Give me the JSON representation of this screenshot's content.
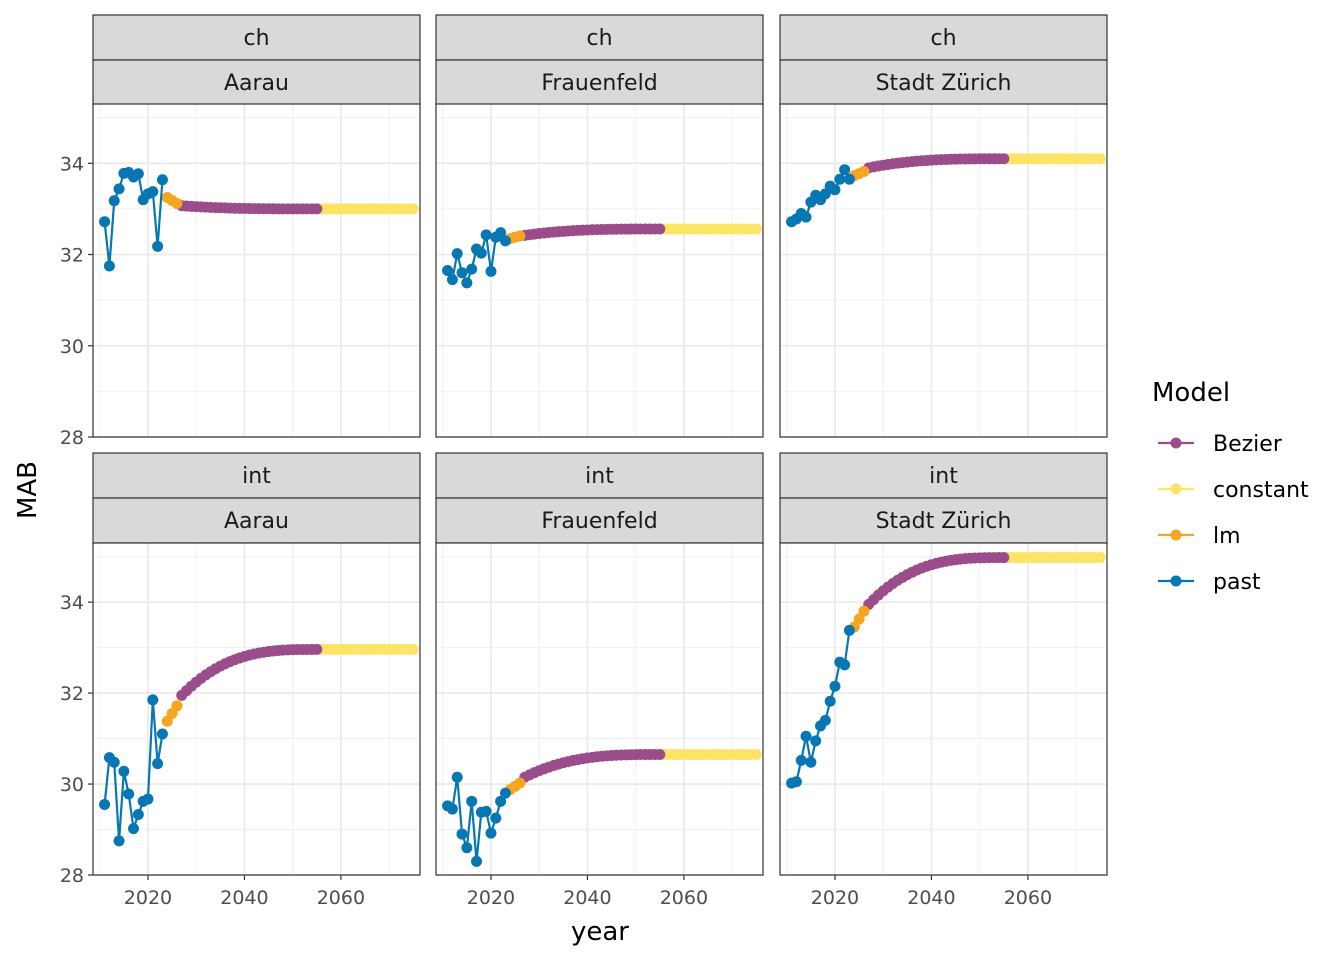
{
  "chart_data": {
    "type": "line",
    "xlabel": "year",
    "ylabel": "MAB",
    "xlim": [
      2008.6,
      2076.4
    ],
    "ylim": [
      28,
      35.3
    ],
    "x_ticks": [
      2020,
      2040,
      2060
    ],
    "x_tick_labels": [
      "2020",
      "2040",
      "2060"
    ],
    "y_ticks": [
      28,
      30,
      32,
      34
    ],
    "y_tick_labels": [
      "28",
      "30",
      "32",
      "34"
    ],
    "grid": true,
    "legend": {
      "title": "Model",
      "position": "right",
      "entries": [
        {
          "name": "Bezier",
          "color": "#9A4D8A"
        },
        {
          "name": "constant",
          "color": "#FDE366"
        },
        {
          "name": "lm",
          "color": "#F6A51E"
        },
        {
          "name": "past",
          "color": "#0677B3"
        }
      ]
    },
    "panels": [
      {
        "row_label": "ch",
        "col_label": "Aarau",
        "past": {
          "x": [
            2011,
            2012,
            2013,
            2014,
            2015,
            2016,
            2017,
            2018,
            2019,
            2020,
            2021,
            2022,
            2023
          ],
          "y": [
            32.72,
            31.75,
            33.18,
            33.44,
            33.78,
            33.8,
            33.7,
            33.77,
            33.2,
            33.33,
            33.38,
            32.18,
            33.64
          ]
        },
        "lm": {
          "x_start": 2024,
          "x_end": 2026,
          "y_start": 33.25,
          "y_end": 33.12
        },
        "bezier": {
          "x_start": 2027,
          "x_end": 2055,
          "y_start": 33.07,
          "y_end": 33.0
        },
        "constant": {
          "x_start": 2056,
          "x_end": 2075,
          "y": 33.0
        }
      },
      {
        "row_label": "ch",
        "col_label": "Frauenfeld",
        "past": {
          "x": [
            2011,
            2012,
            2013,
            2014,
            2015,
            2016,
            2017,
            2018,
            2019,
            2020,
            2021,
            2022,
            2023
          ],
          "y": [
            31.65,
            31.45,
            32.02,
            31.6,
            31.38,
            31.68,
            32.12,
            32.03,
            32.43,
            31.63,
            32.38,
            32.48,
            32.3
          ]
        },
        "lm": {
          "x_start": 2024,
          "x_end": 2026,
          "y_start": 32.35,
          "y_end": 32.41
        },
        "bezier": {
          "x_start": 2027,
          "x_end": 2055,
          "y_start": 32.42,
          "y_end": 32.56
        },
        "constant": {
          "x_start": 2056,
          "x_end": 2075,
          "y": 32.56
        }
      },
      {
        "row_label": "ch",
        "col_label": "Stadt Zürich",
        "past": {
          "x": [
            2011,
            2012,
            2013,
            2014,
            2015,
            2016,
            2017,
            2018,
            2019,
            2020,
            2021,
            2022,
            2023
          ],
          "y": [
            32.72,
            32.78,
            32.9,
            32.82,
            33.15,
            33.3,
            33.2,
            33.33,
            33.5,
            33.42,
            33.65,
            33.86,
            33.65
          ]
        },
        "lm": {
          "x_start": 2024,
          "x_end": 2026,
          "y_start": 33.73,
          "y_end": 33.82
        },
        "bezier": {
          "x_start": 2027,
          "x_end": 2055,
          "y_start": 33.9,
          "y_end": 34.1
        },
        "constant": {
          "x_start": 2056,
          "x_end": 2075,
          "y": 34.1
        }
      },
      {
        "row_label": "int",
        "col_label": "Aarau",
        "past": {
          "x": [
            2011,
            2012,
            2013,
            2014,
            2015,
            2016,
            2017,
            2018,
            2019,
            2020,
            2021,
            2022,
            2023
          ],
          "y": [
            29.55,
            30.58,
            30.48,
            28.75,
            30.28,
            29.78,
            29.02,
            29.33,
            29.62,
            29.67,
            31.85,
            30.45,
            31.1
          ]
        },
        "lm": {
          "x_start": 2024,
          "x_end": 2026,
          "y_start": 31.38,
          "y_end": 31.72
        },
        "bezier": {
          "x_start": 2027,
          "x_end": 2055,
          "y_start": 31.95,
          "y_end": 32.96
        },
        "constant": {
          "x_start": 2056,
          "x_end": 2075,
          "y": 32.96
        }
      },
      {
        "row_label": "int",
        "col_label": "Frauenfeld",
        "past": {
          "x": [
            2011,
            2012,
            2013,
            2014,
            2015,
            2016,
            2017,
            2018,
            2019,
            2020,
            2021,
            2022,
            2023
          ],
          "y": [
            29.52,
            29.45,
            30.15,
            28.9,
            28.6,
            29.62,
            28.3,
            29.38,
            29.4,
            28.92,
            29.25,
            29.62,
            29.8
          ]
        },
        "lm": {
          "x_start": 2024,
          "x_end": 2026,
          "y_start": 29.88,
          "y_end": 30.02
        },
        "bezier": {
          "x_start": 2027,
          "x_end": 2055,
          "y_start": 30.15,
          "y_end": 30.65
        },
        "constant": {
          "x_start": 2056,
          "x_end": 2075,
          "y": 30.65
        }
      },
      {
        "row_label": "int",
        "col_label": "Stadt Zürich",
        "past": {
          "x": [
            2011,
            2012,
            2013,
            2014,
            2015,
            2016,
            2017,
            2018,
            2019,
            2020,
            2021,
            2022,
            2023
          ],
          "y": [
            30.02,
            30.05,
            30.52,
            31.05,
            30.48,
            30.95,
            31.28,
            31.4,
            31.82,
            32.15,
            32.68,
            32.62,
            33.38
          ]
        },
        "lm": {
          "x_start": 2024,
          "x_end": 2026,
          "y_start": 33.45,
          "y_end": 33.8
        },
        "bezier": {
          "x_start": 2027,
          "x_end": 2055,
          "y_start": 33.95,
          "y_end": 34.98
        },
        "constant": {
          "x_start": 2056,
          "x_end": 2075,
          "y": 34.98
        }
      }
    ]
  }
}
